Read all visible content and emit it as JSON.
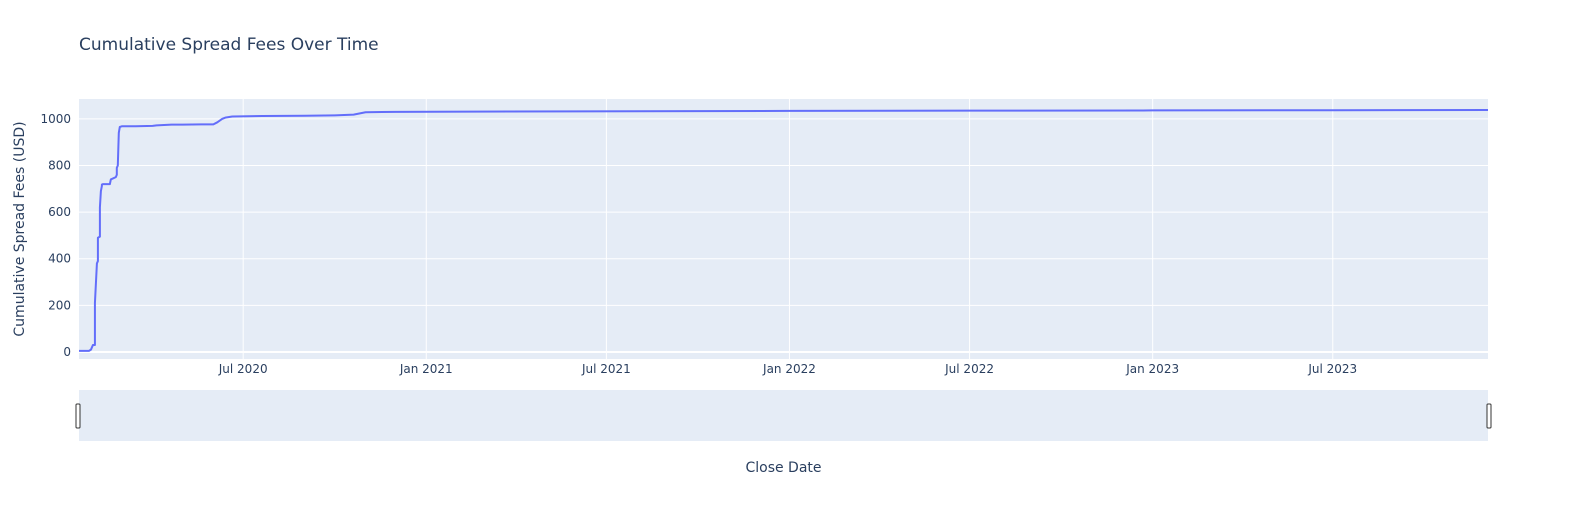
{
  "chart_data": {
    "type": "line",
    "title": "Cumulative Spread Fees Over Time",
    "xlabel": "Close Date",
    "ylabel": "Cumulative Spread Fees (USD)",
    "xlim": [
      "2020-01-18",
      "2023-12-04"
    ],
    "ylim": [
      -30,
      1085
    ],
    "x_ticks": [
      {
        "date": "2020-07-01",
        "label": "Jul 2020"
      },
      {
        "date": "2021-01-01",
        "label": "Jan 2021"
      },
      {
        "date": "2021-07-01",
        "label": "Jul 2021"
      },
      {
        "date": "2022-01-01",
        "label": "Jan 2022"
      },
      {
        "date": "2022-07-01",
        "label": "Jul 2022"
      },
      {
        "date": "2023-01-01",
        "label": "Jan 2023"
      },
      {
        "date": "2023-07-01",
        "label": "Jul 2023"
      }
    ],
    "y_ticks": [
      0,
      200,
      400,
      600,
      800,
      1000
    ],
    "grid": true,
    "range_slider": true,
    "line_color": "#636efa",
    "plot_bg": "#e5ecf6",
    "series": [
      {
        "x": [
          "2020-01-18",
          "2020-01-28",
          "2020-01-30",
          "2020-02-01",
          "2020-02-03",
          "2020-02-03",
          "2020-02-05",
          "2020-02-06",
          "2020-02-06",
          "2020-02-08",
          "2020-02-08",
          "2020-02-09",
          "2020-02-10",
          "2020-02-10",
          "2020-02-11",
          "2020-02-18",
          "2020-02-19",
          "2020-02-24",
          "2020-02-25",
          "2020-02-25",
          "2020-02-26",
          "2020-02-27",
          "2020-02-28",
          "2020-03-01",
          "2020-03-15",
          "2020-04-01",
          "2020-04-05",
          "2020-04-20",
          "2020-05-01",
          "2020-05-20",
          "2020-06-01",
          "2020-06-05",
          "2020-06-10",
          "2020-06-13",
          "2020-06-20",
          "2020-07-20",
          "2020-09-01",
          "2020-10-01",
          "2020-10-20",
          "2020-11-01",
          "2020-12-01",
          "2021-06-01",
          "2022-01-01",
          "2022-07-01",
          "2023-01-01",
          "2023-07-01",
          "2023-12-04"
        ],
        "y": [
          5,
          5,
          10,
          30,
          30,
          210,
          380,
          390,
          490,
          495,
          620,
          690,
          712,
          718,
          720,
          720,
          740,
          750,
          760,
          790,
          800,
          940,
          965,
          968,
          968,
          970,
          972,
          975,
          975,
          976,
          976,
          985,
          1000,
          1005,
          1010,
          1012,
          1013,
          1015,
          1018,
          1028,
          1030,
          1032,
          1034,
          1035,
          1036,
          1037,
          1038
        ]
      }
    ]
  }
}
